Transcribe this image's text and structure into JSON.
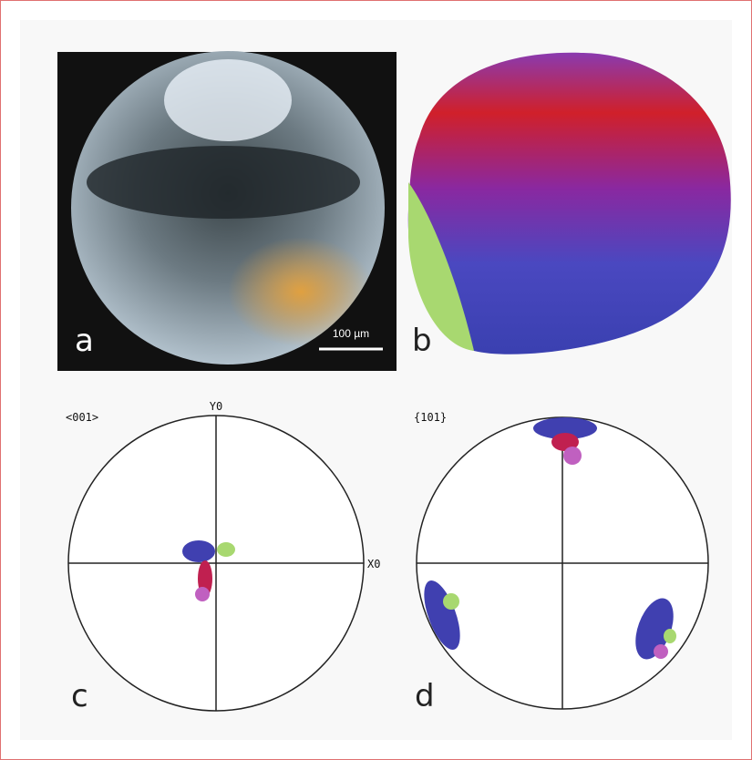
{
  "panels": {
    "a": {
      "label": "a",
      "scale_bar": "100 µm"
    },
    "b": {
      "label": "b"
    },
    "c": {
      "label": "c",
      "projection": "<001>",
      "y_axis": "Y0",
      "x_axis": "X0"
    },
    "d": {
      "label": "d",
      "projection": "{101}"
    }
  }
}
